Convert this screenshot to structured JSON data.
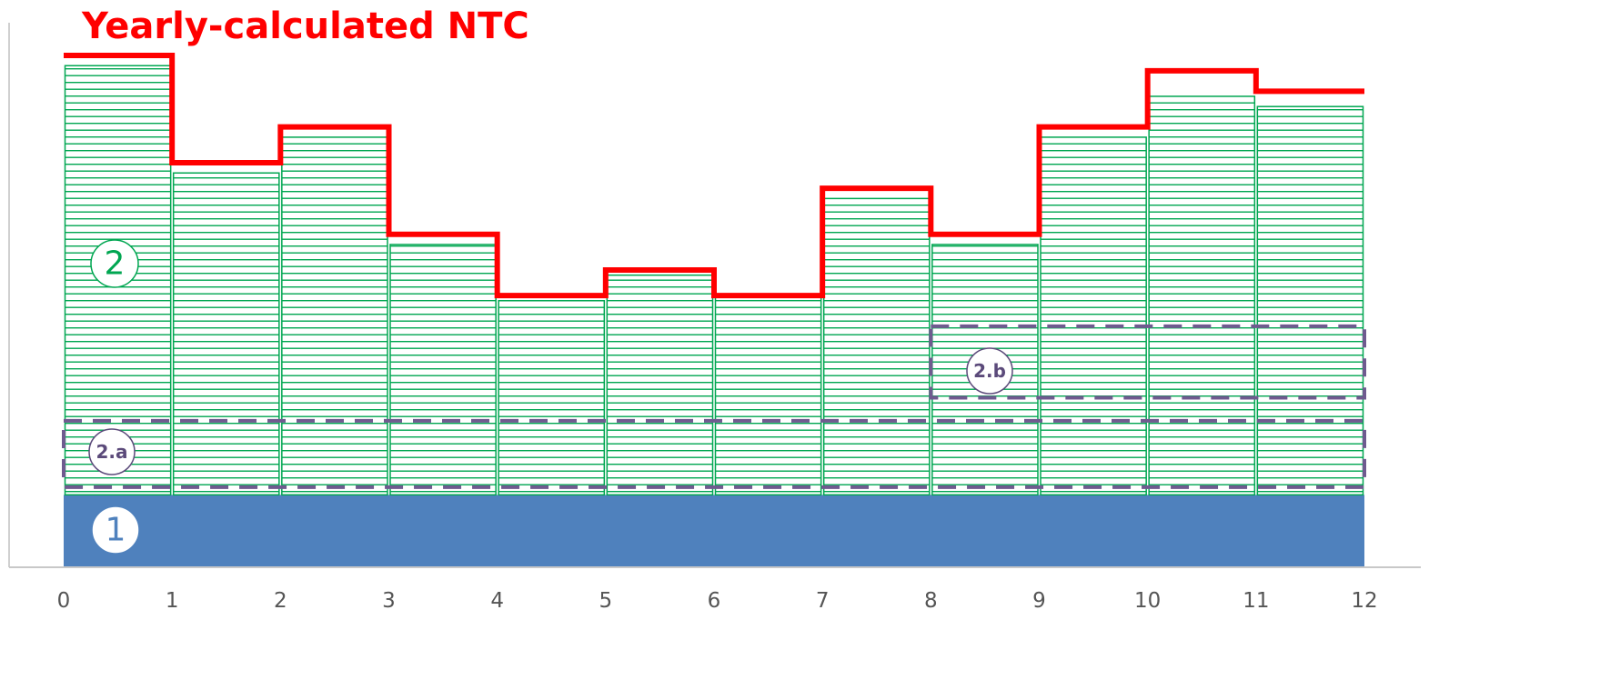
{
  "chart_data": {
    "type": "bar",
    "title": "Yearly-calculated NTC",
    "x_ticks": [
      "0",
      "1",
      "2",
      "3",
      "4",
      "5",
      "6",
      "7",
      "8",
      "9",
      "10",
      "11",
      "12"
    ],
    "xlim": [
      0,
      12
    ],
    "ylim": [
      0,
      100
    ],
    "base_band": {
      "label": "1",
      "value": 14,
      "color": "#4f81bd"
    },
    "monthly_bars": {
      "label": "2",
      "values": [
        98,
        77,
        84,
        63,
        52,
        57,
        53,
        72,
        63,
        84,
        92,
        90
      ],
      "color": "#00a651"
    },
    "ntc_line": {
      "values": [
        100,
        79,
        86,
        65,
        53,
        58,
        53,
        74,
        65,
        86,
        97,
        93
      ],
      "color": "#ff0000"
    },
    "band_2a": {
      "label": "2.a",
      "x_range": [
        0,
        12
      ],
      "y_range": [
        15.5,
        28.5
      ],
      "color": "#6f5a8f"
    },
    "band_2b": {
      "label": "2.b",
      "x_range": [
        8,
        12
      ],
      "y_range": [
        33,
        47
      ],
      "color": "#6f5a8f"
    },
    "label_colors": {
      "label_1": "#4f81bd",
      "label_2": "#00a651",
      "label_2a": "#5b4a7a",
      "label_2b": "#5b4a7a"
    }
  }
}
